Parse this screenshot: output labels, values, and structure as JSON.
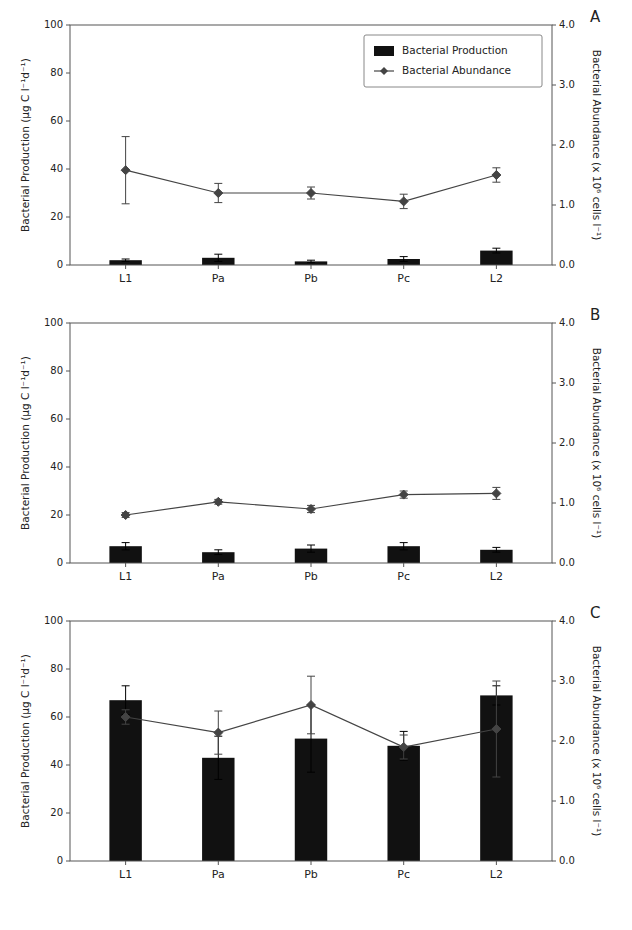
{
  "chart_data": [
    {
      "type": "bar",
      "title": "A",
      "categories": [
        "L1",
        "Pa",
        "Pb",
        "Pc",
        "L2"
      ],
      "series": [
        {
          "name": "Bacterial Production",
          "type": "bar",
          "color": "#111111",
          "values": [
            2.0,
            3.0,
            1.5,
            2.5,
            6.0
          ],
          "errors": [
            0.5,
            1.5,
            0.5,
            1.0,
            1.0
          ]
        },
        {
          "name": "Bacterial Abundance",
          "type": "line",
          "axis": "y2",
          "color": "#444444",
          "marker": "diamond",
          "values": [
            1.58,
            1.2,
            1.2,
            1.06,
            1.5
          ],
          "errors": [
            0.56,
            0.16,
            0.1,
            0.12,
            0.12
          ]
        }
      ],
      "ylabel": "Bacterial Production (μg C l⁻¹d⁻¹)",
      "y2label": "Bacterial Abundance (x 10⁶ cells l⁻¹)",
      "ylim": [
        0,
        100
      ],
      "yticks": [
        0,
        20,
        40,
        60,
        80,
        100
      ],
      "y2lim": [
        0,
        4.0
      ],
      "y2ticks": [
        {
          "value": 0,
          "label": "0.0"
        },
        {
          "value": 1.0,
          "label": "1.0"
        },
        {
          "value": 2.0,
          "label": "2.0"
        },
        {
          "value": 3.0,
          "label": "3.0"
        },
        {
          "value": 4.0,
          "label": "4.0"
        }
      ],
      "legend": "upper right"
    },
    {
      "type": "bar",
      "title": "B",
      "categories": [
        "L1",
        "Pa",
        "Pb",
        "Pc",
        "L2"
      ],
      "series": [
        {
          "type": "bar",
          "color": "#111111",
          "values": [
            7.0,
            4.5,
            6.0,
            7.0,
            5.5
          ],
          "errors": [
            1.5,
            1.0,
            1.5,
            1.5,
            1.0
          ]
        },
        {
          "type": "line",
          "axis": "y2",
          "color": "#444444",
          "marker": "diamond",
          "values": [
            0.8,
            1.02,
            0.9,
            1.14,
            1.16
          ],
          "errors": [
            0.04,
            0.04,
            0.06,
            0.06,
            0.1
          ]
        }
      ],
      "ylabel": "Bacterial Production (μg C l⁻¹d⁻¹)",
      "y2label": "Bacterial Abundance (x 10⁶ cells l⁻¹)",
      "ylim": [
        0,
        100
      ],
      "yticks": [
        0,
        20,
        40,
        60,
        80,
        100
      ],
      "y2lim": [
        0,
        4.0
      ],
      "y2ticks": [
        {
          "value": 0,
          "label": "0.0"
        },
        {
          "value": 1.0,
          "label": "1.0"
        },
        {
          "value": 2.0,
          "label": "2.0"
        },
        {
          "value": 3.0,
          "label": "3.0"
        },
        {
          "value": 4.0,
          "label": "4.0"
        }
      ]
    },
    {
      "type": "bar",
      "title": "C",
      "categories": [
        "L1",
        "Pa",
        "Pb",
        "Pc",
        "L2"
      ],
      "series": [
        {
          "type": "bar",
          "color": "#111111",
          "values": [
            67.0,
            43.0,
            51.0,
            48.0,
            69.0
          ],
          "errors": [
            6.0,
            9.0,
            14.0,
            6.0,
            4.0
          ]
        },
        {
          "type": "line",
          "axis": "y2",
          "color": "#444444",
          "marker": "diamond",
          "values": [
            2.4,
            2.14,
            2.6,
            1.9,
            2.2
          ],
          "errors": [
            0.12,
            0.36,
            0.48,
            0.2,
            0.8
          ]
        }
      ],
      "ylabel": "Bacterial Production (μg C l⁻¹d⁻¹)",
      "y2label": "Bacterial Abundance (x 10⁶ cells l⁻¹)",
      "ylim": [
        0,
        100
      ],
      "yticks": [
        0,
        20,
        40,
        60,
        80,
        100
      ],
      "y2lim": [
        0,
        4.0
      ],
      "y2ticks": [
        {
          "value": 0,
          "label": "0.0"
        },
        {
          "value": 1.0,
          "label": "1.0"
        },
        {
          "value": 2.0,
          "label": "2.0"
        },
        {
          "value": 3.0,
          "label": "3.0"
        },
        {
          "value": 4.0,
          "label": "4.0"
        }
      ]
    }
  ]
}
